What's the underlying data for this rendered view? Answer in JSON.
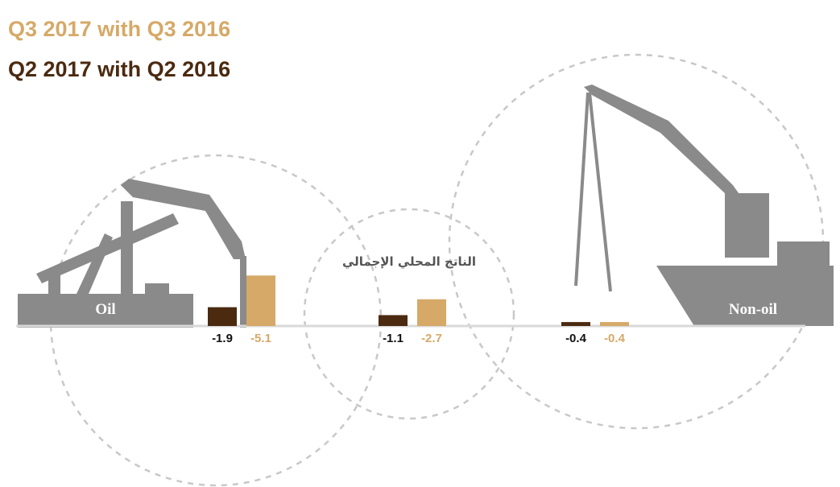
{
  "chart_data": {
    "type": "bar",
    "categories": [
      "Oil",
      "الناتج المحلي الإجمالي",
      "Non-oil"
    ],
    "series": [
      {
        "name": "Q2 2017 with Q2 2016",
        "color": "#4b2a10",
        "values": [
          -1.9,
          -1.1,
          -0.4
        ]
      },
      {
        "name": "Q3 2017 with Q3 2016",
        "color": "#d6a968",
        "values": [
          -5.1,
          -2.7,
          -0.4
        ]
      }
    ]
  }
}
